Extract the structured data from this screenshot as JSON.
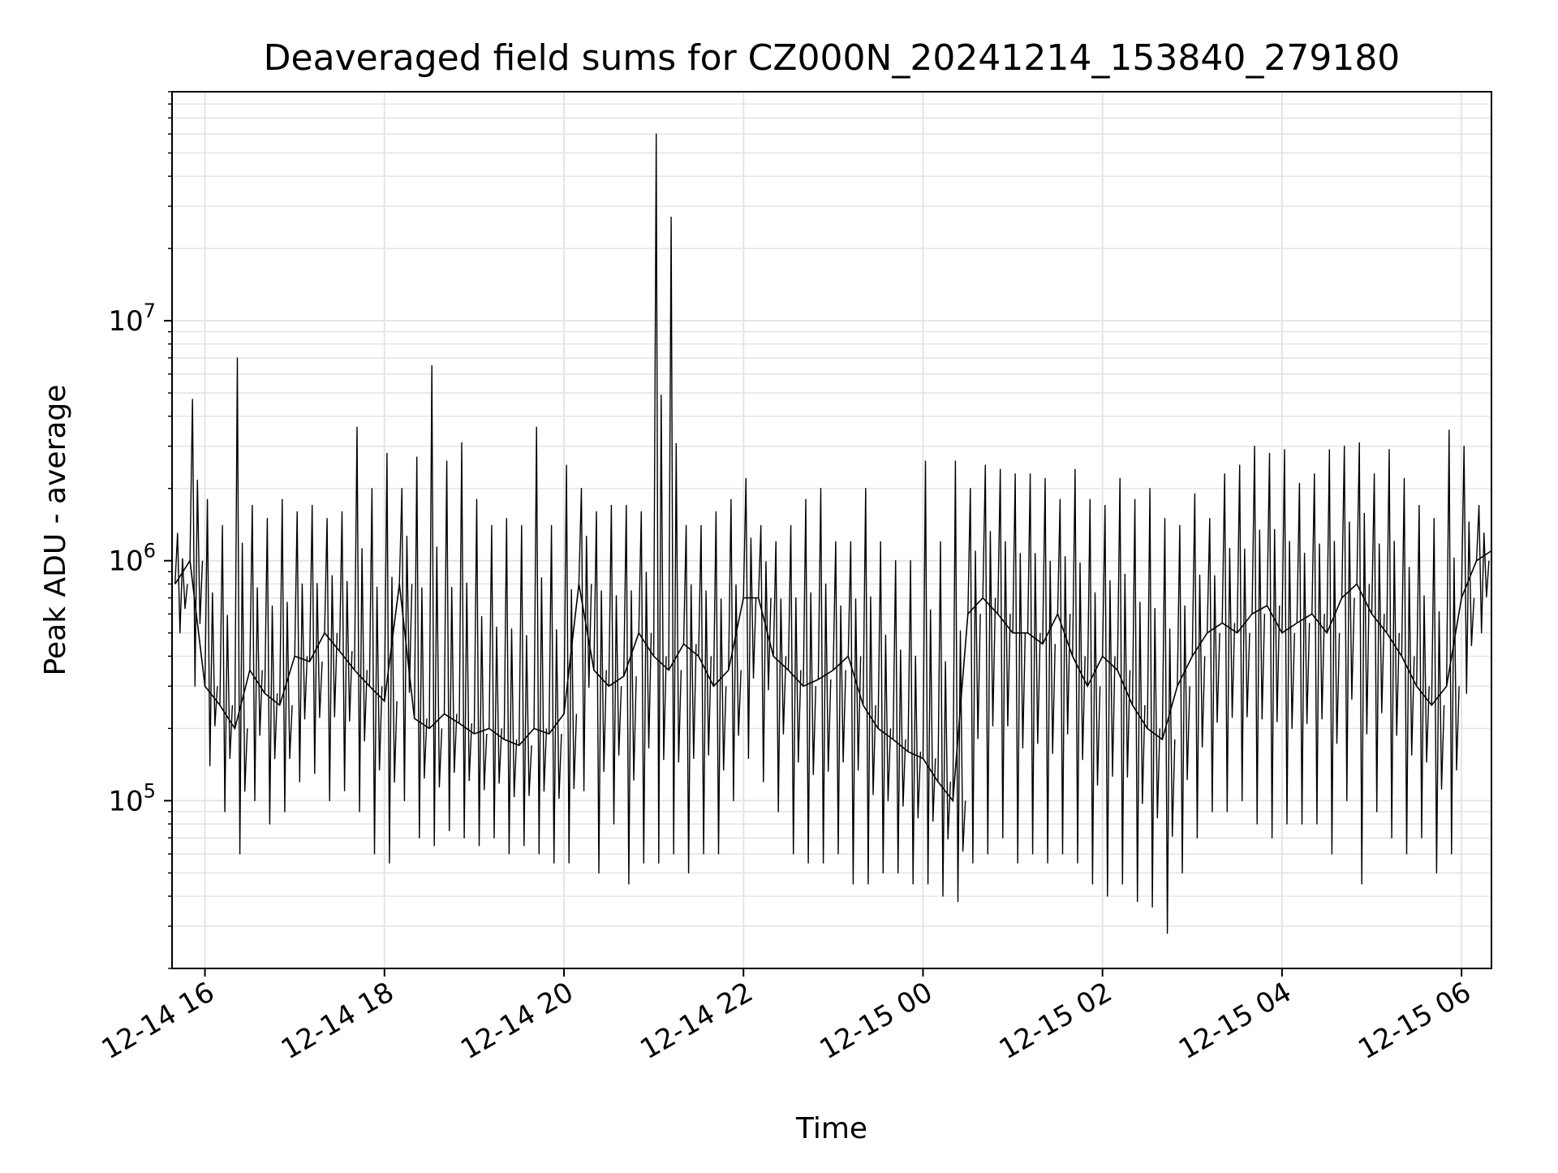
{
  "chart_data": {
    "type": "line",
    "title": "Deaveraged field sums for CZ000N_20241214_153840_279180",
    "xlabel": "Time",
    "ylabel": "Peak ADU - average",
    "y_scale": "log",
    "ylim": [
      20000,
      90000000
    ],
    "xlim": [
      "2024-12-14 15:38",
      "2024-12-15 06:20"
    ],
    "grid": true,
    "legend": "none",
    "line_color": "#000000",
    "grid_color": "#e5e5e5",
    "x_ticks": [
      {
        "value": "2024-12-14 16:00",
        "label": "12-14 16"
      },
      {
        "value": "2024-12-14 18:00",
        "label": "12-14 18"
      },
      {
        "value": "2024-12-14 20:00",
        "label": "12-14 20"
      },
      {
        "value": "2024-12-14 22:00",
        "label": "12-14 22"
      },
      {
        "value": "2024-12-15 00:00",
        "label": "12-15 00"
      },
      {
        "value": "2024-12-15 02:00",
        "label": "12-15 02"
      },
      {
        "value": "2024-12-15 04:00",
        "label": "12-15 04"
      },
      {
        "value": "2024-12-15 06:00",
        "label": "12-15 06"
      }
    ],
    "y_ticks": [
      {
        "value": 100000,
        "base": "10",
        "exp": "5"
      },
      {
        "value": 1000000,
        "base": "10",
        "exp": "6"
      },
      {
        "value": 10000000,
        "base": "10",
        "exp": "7"
      }
    ],
    "series": [
      {
        "x": [
          "2024-12-14 15:40",
          "2024-12-14 15:50",
          "2024-12-14 16:00",
          "2024-12-14 16:10",
          "2024-12-14 16:20",
          "2024-12-14 16:30",
          "2024-12-14 16:40",
          "2024-12-14 16:50",
          "2024-12-14 17:00",
          "2024-12-14 17:10",
          "2024-12-14 17:20",
          "2024-12-14 17:30",
          "2024-12-14 17:40",
          "2024-12-14 17:50",
          "2024-12-14 18:00",
          "2024-12-14 18:10",
          "2024-12-14 18:20",
          "2024-12-14 18:30",
          "2024-12-14 18:40",
          "2024-12-14 18:50",
          "2024-12-14 19:00",
          "2024-12-14 19:10",
          "2024-12-14 19:20",
          "2024-12-14 19:30",
          "2024-12-14 19:40",
          "2024-12-14 19:50",
          "2024-12-14 20:00",
          "2024-12-14 20:10",
          "2024-12-14 20:20",
          "2024-12-14 20:30",
          "2024-12-14 20:40",
          "2024-12-14 20:50",
          "2024-12-14 21:00",
          "2024-12-14 21:10",
          "2024-12-14 21:20",
          "2024-12-14 21:30",
          "2024-12-14 21:40",
          "2024-12-14 21:50",
          "2024-12-14 22:00",
          "2024-12-14 22:10",
          "2024-12-14 22:20",
          "2024-12-14 22:30",
          "2024-12-14 22:40",
          "2024-12-14 22:50",
          "2024-12-14 23:00",
          "2024-12-14 23:10",
          "2024-12-14 23:20",
          "2024-12-14 23:30",
          "2024-12-14 23:40",
          "2024-12-14 23:50",
          "2024-12-15 00:00",
          "2024-12-15 00:10",
          "2024-12-15 00:20",
          "2024-12-15 00:30",
          "2024-12-15 00:40",
          "2024-12-15 00:50",
          "2024-12-15 01:00",
          "2024-12-15 01:10",
          "2024-12-15 01:20",
          "2024-12-15 01:30",
          "2024-12-15 01:40",
          "2024-12-15 01:50",
          "2024-12-15 02:00",
          "2024-12-15 02:10",
          "2024-12-15 02:20",
          "2024-12-15 02:30",
          "2024-12-15 02:40",
          "2024-12-15 02:50",
          "2024-12-15 03:00",
          "2024-12-15 03:10",
          "2024-12-15 03:20",
          "2024-12-15 03:30",
          "2024-12-15 03:40",
          "2024-12-15 03:50",
          "2024-12-15 04:00",
          "2024-12-15 04:10",
          "2024-12-15 04:20",
          "2024-12-15 04:30",
          "2024-12-15 04:40",
          "2024-12-15 04:50",
          "2024-12-15 05:00",
          "2024-12-15 05:10",
          "2024-12-15 05:20",
          "2024-12-15 05:30",
          "2024-12-15 05:40",
          "2024-12-15 05:50",
          "2024-12-15 06:00",
          "2024-12-15 06:10",
          "2024-12-15 06:20"
        ],
        "y": [
          800000,
          1000000,
          300000,
          250000,
          200000,
          350000,
          280000,
          250000,
          400000,
          380000,
          500000,
          420000,
          350000,
          300000,
          260000,
          800000,
          220000,
          200000,
          230000,
          210000,
          190000,
          200000,
          180000,
          170000,
          200000,
          190000,
          230000,
          800000,
          350000,
          300000,
          330000,
          500000,
          400000,
          350000,
          450000,
          400000,
          300000,
          350000,
          700000,
          700000,
          400000,
          350000,
          300000,
          320000,
          350000,
          400000,
          250000,
          200000,
          180000,
          160000,
          150000,
          120000,
          100000,
          600000,
          700000,
          600000,
          500000,
          500000,
          450000,
          600000,
          400000,
          300000,
          400000,
          350000,
          250000,
          200000,
          180000,
          300000,
          400000,
          500000,
          550000,
          500000,
          600000,
          650000,
          500000,
          550000,
          600000,
          500000,
          700000,
          800000,
          600000,
          500000,
          400000,
          300000,
          250000,
          300000,
          700000,
          1000000,
          1100000
        ],
        "y_max": [
          1300000,
          4700000,
          1800000,
          1400000,
          7000000,
          1700000,
          1500000,
          1800000,
          1600000,
          1700000,
          1500000,
          1600000,
          3600000,
          2000000,
          2800000,
          2000000,
          2700000,
          6500000,
          2600000,
          3100000,
          1800000,
          1400000,
          1500000,
          1400000,
          3600000,
          1400000,
          2500000,
          2000000,
          1600000,
          1700000,
          1700000,
          1600000,
          60000000,
          27000000,
          1400000,
          1400000,
          1600000,
          1800000,
          2200000,
          1400000,
          1200000,
          1400000,
          1800000,
          2000000,
          1200000,
          1200000,
          2000000,
          1200000,
          1000000,
          1000000,
          2600000,
          1200000,
          2600000,
          2000000,
          2500000,
          2400000,
          2300000,
          2300000,
          2200000,
          1800000,
          2400000,
          1800000,
          1700000,
          2200000,
          1800000,
          2000000,
          1500000,
          1400000,
          1900000,
          1500000,
          2300000,
          2500000,
          3000000,
          2800000,
          2900000,
          2100000,
          2300000,
          2900000,
          3000000,
          3100000,
          2300000,
          2900000,
          2200000,
          1700000,
          1500000,
          3500000,
          3000000,
          1700000,
          2000000
        ],
        "y_min": [
          500000,
          300000,
          140000,
          90000,
          60000,
          100000,
          80000,
          90000,
          120000,
          130000,
          100000,
          110000,
          90000,
          60000,
          55000,
          100000,
          70000,
          65000,
          75000,
          70000,
          65000,
          70000,
          60000,
          65000,
          60000,
          55000,
          55000,
          110000,
          50000,
          80000,
          45000,
          55000,
          55000,
          60000,
          50000,
          60000,
          60000,
          100000,
          150000,
          120000,
          90000,
          60000,
          55000,
          55000,
          60000,
          45000,
          45000,
          50000,
          50000,
          45000,
          45000,
          40000,
          38000,
          55000,
          60000,
          70000,
          55000,
          60000,
          55000,
          60000,
          55000,
          45000,
          40000,
          45000,
          38000,
          36000,
          28000,
          50000,
          70000,
          90000,
          90000,
          100000,
          80000,
          70000,
          80000,
          80000,
          80000,
          60000,
          100000,
          45000,
          90000,
          70000,
          60000,
          70000,
          50000,
          60000,
          280000,
          500000,
          600000
        ]
      }
    ]
  }
}
